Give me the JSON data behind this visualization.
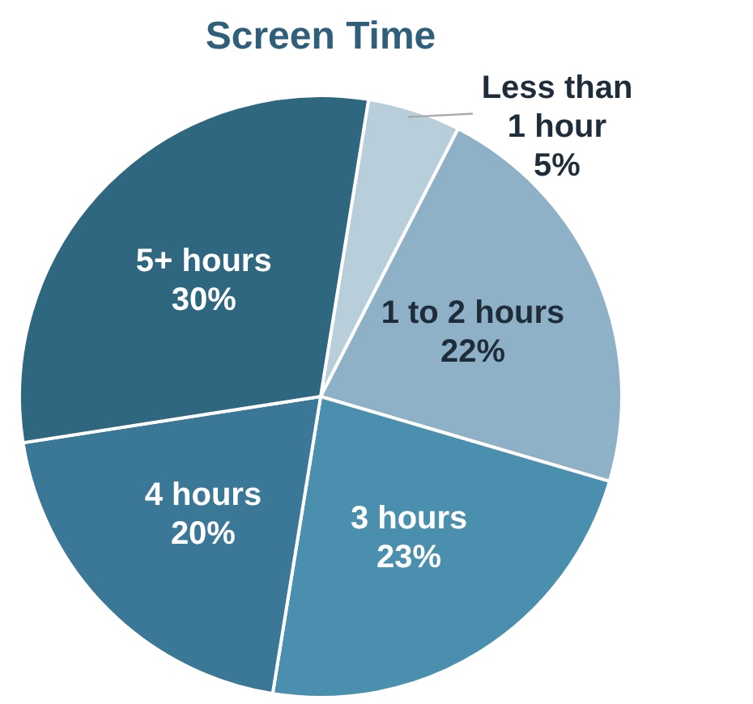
{
  "chart_data": {
    "type": "pie",
    "title": "Screen Time",
    "categories": [
      "Less than 1 hour",
      "1 to 2 hours",
      "3 hours",
      "4 hours",
      "5+ hours"
    ],
    "values": [
      5,
      22,
      23,
      20,
      30
    ],
    "value_labels": [
      "5%",
      "22%",
      "23%",
      "20%",
      "30%"
    ],
    "colors": [
      "#b9cedb",
      "#8fb1c7",
      "#4a8fae",
      "#3b7796",
      "#2f6680"
    ]
  }
}
